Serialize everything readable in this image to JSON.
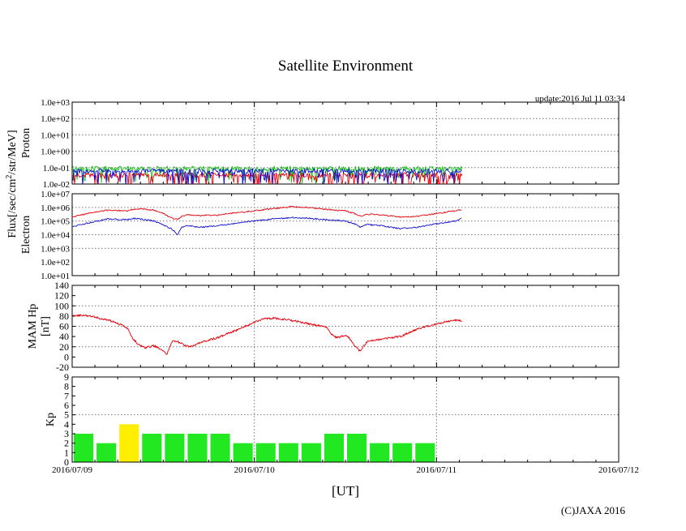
{
  "title": "Satellite Environment",
  "update_text": "update:2016 Jul 11 03:34",
  "copyright": "(C)JAXA 2016",
  "x_axis": {
    "label": "[UT]",
    "ticks": [
      "2016/07/09",
      "2016/07/10",
      "2016/07/11",
      "2016/07/12"
    ],
    "range_days": [
      0,
      3
    ]
  },
  "shared_ylabel": {
    "prefix": "Flux[/sec/cm",
    "superscript": "2",
    "suffix": "/str/MeV]"
  },
  "colors": {
    "red": "#e8000b",
    "blue": "#1010d0",
    "green": "#10c010",
    "kp_normal": "#22e822",
    "kp_elevated": "#ffee00",
    "grid": "#777777"
  },
  "chart_data": [
    {
      "name": "proton",
      "type": "line",
      "ylabel": "Proton",
      "yscale": "log",
      "ylim_exp": [
        -2,
        3
      ],
      "tick_labels": [
        "1.0e+03",
        "1.0e+02",
        "1.0e+01",
        "1.0e+00",
        "1.0e-01",
        "1.0e-02"
      ],
      "grid_exp": [
        2,
        1,
        0,
        -1
      ],
      "data_end_day": 2.14,
      "series": [
        {
          "name": "green",
          "mean_exp": -1.05,
          "color_key": "green"
        },
        {
          "name": "red",
          "mean_exp": -1.45,
          "color_key": "red"
        },
        {
          "name": "blue",
          "mean_exp": -1.2,
          "color_key": "blue"
        }
      ]
    },
    {
      "name": "electron",
      "type": "line",
      "ylabel": "Electron",
      "yscale": "log",
      "ylim_exp": [
        1,
        7
      ],
      "tick_labels": [
        "1.0e+07",
        "1.0e+06",
        "1.0e+05",
        "1.0e+04",
        "1.0e+03",
        "1.0e+02",
        "1.0e+01"
      ],
      "grid_exp": [
        6,
        5,
        4,
        3
      ],
      "series": [
        {
          "name": "red",
          "color_key": "red",
          "x": [
            0,
            0.1,
            0.2,
            0.3,
            0.35,
            0.45,
            0.5,
            0.55,
            0.58,
            0.6,
            0.63,
            0.7,
            0.8,
            0.9,
            1.0,
            1.1,
            1.2,
            1.3,
            1.4,
            1.5,
            1.55,
            1.58,
            1.62,
            1.7,
            1.8,
            1.9,
            2.0,
            2.1,
            2.14
          ],
          "y": [
            5.3,
            5.6,
            5.8,
            5.75,
            5.9,
            5.8,
            5.55,
            5.2,
            5.1,
            5.35,
            5.45,
            5.4,
            5.45,
            5.6,
            5.75,
            5.9,
            6.05,
            6.0,
            5.85,
            5.75,
            5.55,
            5.35,
            5.5,
            5.45,
            5.3,
            5.35,
            5.55,
            5.75,
            5.85
          ]
        },
        {
          "name": "blue",
          "color_key": "blue",
          "x": [
            0,
            0.1,
            0.2,
            0.3,
            0.35,
            0.45,
            0.5,
            0.55,
            0.58,
            0.6,
            0.63,
            0.7,
            0.8,
            0.9,
            1.0,
            1.1,
            1.2,
            1.3,
            1.4,
            1.5,
            1.55,
            1.58,
            1.62,
            1.7,
            1.8,
            1.9,
            2.0,
            2.1,
            2.14
          ],
          "y": [
            4.6,
            4.9,
            5.15,
            5.1,
            5.2,
            5.0,
            4.7,
            4.4,
            4.0,
            4.55,
            4.65,
            4.55,
            4.65,
            4.85,
            5.0,
            5.15,
            5.25,
            5.2,
            5.1,
            5.0,
            4.8,
            4.55,
            4.75,
            4.65,
            4.45,
            4.55,
            4.8,
            5.0,
            5.2
          ]
        }
      ]
    },
    {
      "name": "mam_hp",
      "type": "line",
      "ylabel": [
        "MAM Hp",
        "[nT]"
      ],
      "ylim": [
        -20,
        140
      ],
      "yticks": [
        140,
        120,
        100,
        80,
        60,
        40,
        20,
        0,
        -20
      ],
      "grid_values": [
        100,
        60,
        20
      ],
      "series": [
        {
          "name": "hp",
          "color_key": "red",
          "x": [
            0,
            0.05,
            0.1,
            0.15,
            0.2,
            0.25,
            0.3,
            0.33,
            0.36,
            0.4,
            0.45,
            0.5,
            0.52,
            0.55,
            0.58,
            0.62,
            0.65,
            0.7,
            0.8,
            0.9,
            1.0,
            1.05,
            1.1,
            1.15,
            1.2,
            1.3,
            1.4,
            1.42,
            1.45,
            1.5,
            1.52,
            1.55,
            1.58,
            1.62,
            1.7,
            1.8,
            1.9,
            2.0,
            2.1,
            2.14
          ],
          "y": [
            80,
            82,
            80,
            76,
            72,
            65,
            58,
            38,
            25,
            18,
            22,
            12,
            5,
            32,
            30,
            22,
            20,
            28,
            38,
            52,
            68,
            74,
            76,
            74,
            72,
            65,
            58,
            45,
            38,
            42,
            38,
            22,
            12,
            30,
            35,
            40,
            55,
            65,
            72,
            70
          ]
        }
      ]
    },
    {
      "name": "kp",
      "type": "bar",
      "ylabel": "Kp",
      "ylim": [
        0,
        9
      ],
      "yticks": [
        9,
        8,
        7,
        6,
        5,
        4,
        3,
        2,
        1,
        0
      ],
      "grid_values": [
        5
      ],
      "bin_hours": 3,
      "values": [
        3,
        2,
        4,
        3,
        3,
        3,
        3,
        2,
        2,
        2,
        2,
        3,
        3,
        2,
        2,
        2
      ],
      "highlight_threshold": 4
    }
  ]
}
